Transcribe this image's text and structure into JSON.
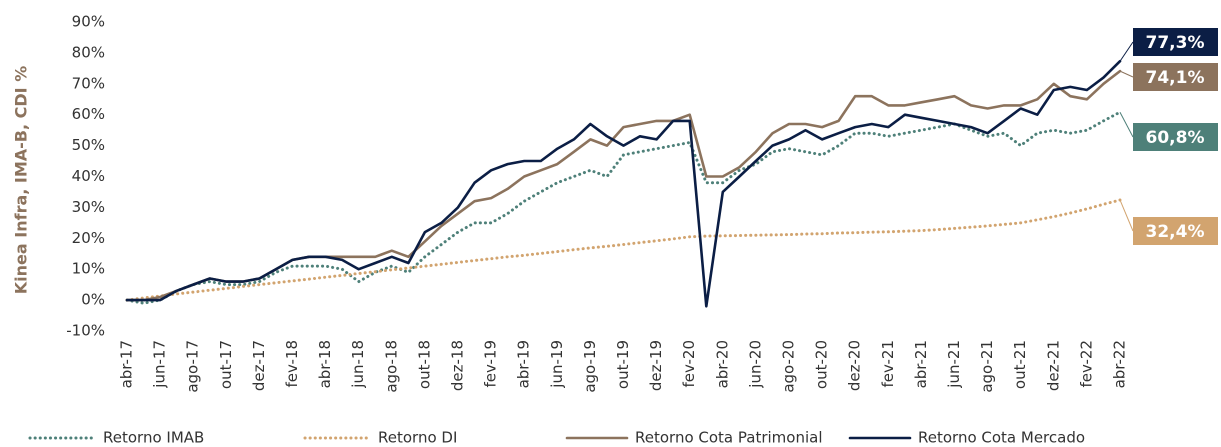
{
  "chart_data": {
    "type": "line",
    "y_label": "Kinea Infra, IMA-B, CDI %",
    "categories": [
      "abr-17",
      null,
      "jun-17",
      null,
      "ago-17",
      null,
      "out-17",
      null,
      "dez-17",
      null,
      "fev-18",
      null,
      "abr-18",
      null,
      "jun-18",
      null,
      "ago-18",
      null,
      "out-18",
      null,
      "dez-18",
      null,
      "fev-19",
      null,
      "abr-19",
      null,
      "jun-19",
      null,
      "ago-19",
      null,
      "out-19",
      null,
      "dez-19",
      null,
      "fev-20",
      null,
      "abr-20",
      null,
      "jun-20",
      null,
      "ago-20",
      null,
      "out-20",
      null,
      "dez-20",
      null,
      "fev-21",
      null,
      "abr-21",
      null,
      "jun-21",
      null,
      "ago-21",
      null,
      "out-21",
      null,
      "dez-21",
      null,
      "fev-22",
      null,
      "abr-22"
    ],
    "ylim": [
      -10,
      90
    ],
    "yticks": [
      {
        "value": -10,
        "label": "-10%"
      },
      {
        "value": 0,
        "label": "0%"
      },
      {
        "value": 10,
        "label": "10%"
      },
      {
        "value": 20,
        "label": "20%"
      },
      {
        "value": 30,
        "label": "30%"
      },
      {
        "value": 40,
        "label": "40%"
      },
      {
        "value": 50,
        "label": "50%"
      },
      {
        "value": 60,
        "label": "60%"
      },
      {
        "value": 70,
        "label": "70%"
      },
      {
        "value": 80,
        "label": "80%"
      },
      {
        "value": 90,
        "label": "90%"
      }
    ],
    "grid": false,
    "legend": "bottom",
    "series": [
      {
        "name": "Retorno IMAB",
        "color": "#4e8079",
        "dash": "dotted",
        "values": [
          0,
          -1,
          0,
          3,
          5,
          6,
          5,
          5,
          6,
          9,
          11,
          11,
          11,
          10,
          6,
          9,
          11,
          9,
          14,
          18,
          22,
          25,
          25,
          28,
          32,
          35,
          38,
          40,
          42,
          40,
          47,
          48,
          49,
          50,
          51,
          38,
          38,
          42,
          44,
          48,
          49,
          48,
          47,
          50,
          54,
          54,
          53,
          54,
          55,
          56,
          57,
          55,
          53,
          54,
          50,
          54,
          55,
          54,
          55,
          58,
          60.8
        ],
        "value_labels": [
          null,
          null,
          null,
          null,
          null,
          null,
          null,
          null,
          null,
          null,
          null,
          null,
          null,
          null,
          null,
          null,
          null,
          null,
          null,
          null,
          null,
          null,
          null,
          null,
          null,
          null,
          null,
          null,
          null,
          null,
          null,
          null,
          null,
          null,
          null,
          null,
          null,
          null,
          null,
          null,
          null,
          null,
          null,
          null,
          null,
          null,
          null,
          null,
          null,
          null,
          null,
          null,
          null,
          null,
          null,
          null,
          null,
          null,
          null,
          null,
          "60,8%"
        ]
      },
      {
        "name": "Retorno DI",
        "color": "#d2a46f",
        "dash": "dotted",
        "values": [
          0,
          0.7,
          1.3,
          2,
          2.6,
          3.2,
          3.8,
          4.4,
          5,
          5.6,
          6.2,
          6.8,
          7.4,
          8,
          8.6,
          9.2,
          9.8,
          10.4,
          11,
          11.6,
          12.2,
          12.8,
          13.4,
          14,
          14.5,
          15.1,
          15.7,
          16.3,
          16.9,
          17.4,
          18,
          18.6,
          19.2,
          19.8,
          20.5,
          20.7,
          20.8,
          20.9,
          21,
          21.1,
          21.2,
          21.4,
          21.5,
          21.7,
          21.8,
          22,
          22.1,
          22.3,
          22.5,
          22.8,
          23.2,
          23.6,
          24,
          24.5,
          25,
          26,
          27,
          28.2,
          29.5,
          31,
          32.4
        ],
        "value_labels": [
          null,
          null,
          null,
          null,
          null,
          null,
          null,
          null,
          null,
          null,
          null,
          null,
          null,
          null,
          null,
          null,
          null,
          null,
          null,
          null,
          null,
          null,
          null,
          null,
          null,
          null,
          null,
          null,
          null,
          null,
          null,
          null,
          null,
          null,
          null,
          null,
          null,
          null,
          null,
          null,
          null,
          null,
          null,
          null,
          null,
          null,
          null,
          null,
          null,
          null,
          null,
          null,
          null,
          null,
          null,
          null,
          null,
          null,
          null,
          null,
          "32,4%"
        ]
      },
      {
        "name": "Retorno Cota Patrimonial",
        "color": "#8c735d",
        "dash": "solid",
        "values": [
          0,
          0,
          1,
          3,
          5,
          7,
          6,
          6,
          7,
          10,
          13,
          14,
          14,
          14,
          14,
          14,
          16,
          14,
          19,
          24,
          28,
          32,
          33,
          36,
          40,
          42,
          44,
          48,
          52,
          50,
          56,
          57,
          58,
          58,
          60,
          40,
          40,
          43,
          48,
          54,
          57,
          57,
          56,
          58,
          66,
          66,
          63,
          63,
          64,
          65,
          66,
          63,
          62,
          63,
          63,
          65,
          70,
          66,
          65,
          70,
          74.1
        ],
        "value_labels": [
          null,
          null,
          null,
          null,
          null,
          null,
          null,
          null,
          null,
          null,
          null,
          null,
          null,
          null,
          null,
          null,
          null,
          null,
          null,
          null,
          null,
          null,
          null,
          null,
          null,
          null,
          null,
          null,
          null,
          null,
          null,
          null,
          null,
          null,
          null,
          null,
          null,
          null,
          null,
          null,
          null,
          null,
          null,
          null,
          null,
          null,
          null,
          null,
          null,
          null,
          null,
          null,
          null,
          null,
          null,
          null,
          null,
          null,
          null,
          null,
          "74,1%"
        ]
      },
      {
        "name": "Retorno Cota Mercado",
        "color": "#0b1e45",
        "dash": "solid",
        "values": [
          0,
          0,
          0,
          3,
          5,
          7,
          6,
          6,
          7,
          10,
          13,
          14,
          14,
          13,
          10,
          12,
          14,
          12,
          22,
          25,
          30,
          38,
          42,
          44,
          45,
          45,
          49,
          52,
          57,
          53,
          50,
          53,
          52,
          58,
          58,
          -2,
          35,
          40,
          45,
          50,
          52,
          55,
          52,
          54,
          56,
          57,
          56,
          60,
          59,
          58,
          57,
          56,
          54,
          58,
          62,
          60,
          68,
          69,
          68,
          72,
          77.3
        ],
        "value_labels": [
          null,
          null,
          null,
          null,
          null,
          null,
          null,
          null,
          null,
          null,
          null,
          null,
          null,
          null,
          null,
          null,
          null,
          null,
          null,
          null,
          null,
          null,
          null,
          null,
          null,
          null,
          null,
          null,
          null,
          null,
          null,
          null,
          null,
          null,
          null,
          null,
          null,
          null,
          null,
          null,
          null,
          null,
          null,
          null,
          null,
          null,
          null,
          null,
          null,
          null,
          null,
          null,
          null,
          null,
          null,
          null,
          null,
          null,
          null,
          null,
          "77,3%"
        ]
      }
    ]
  }
}
